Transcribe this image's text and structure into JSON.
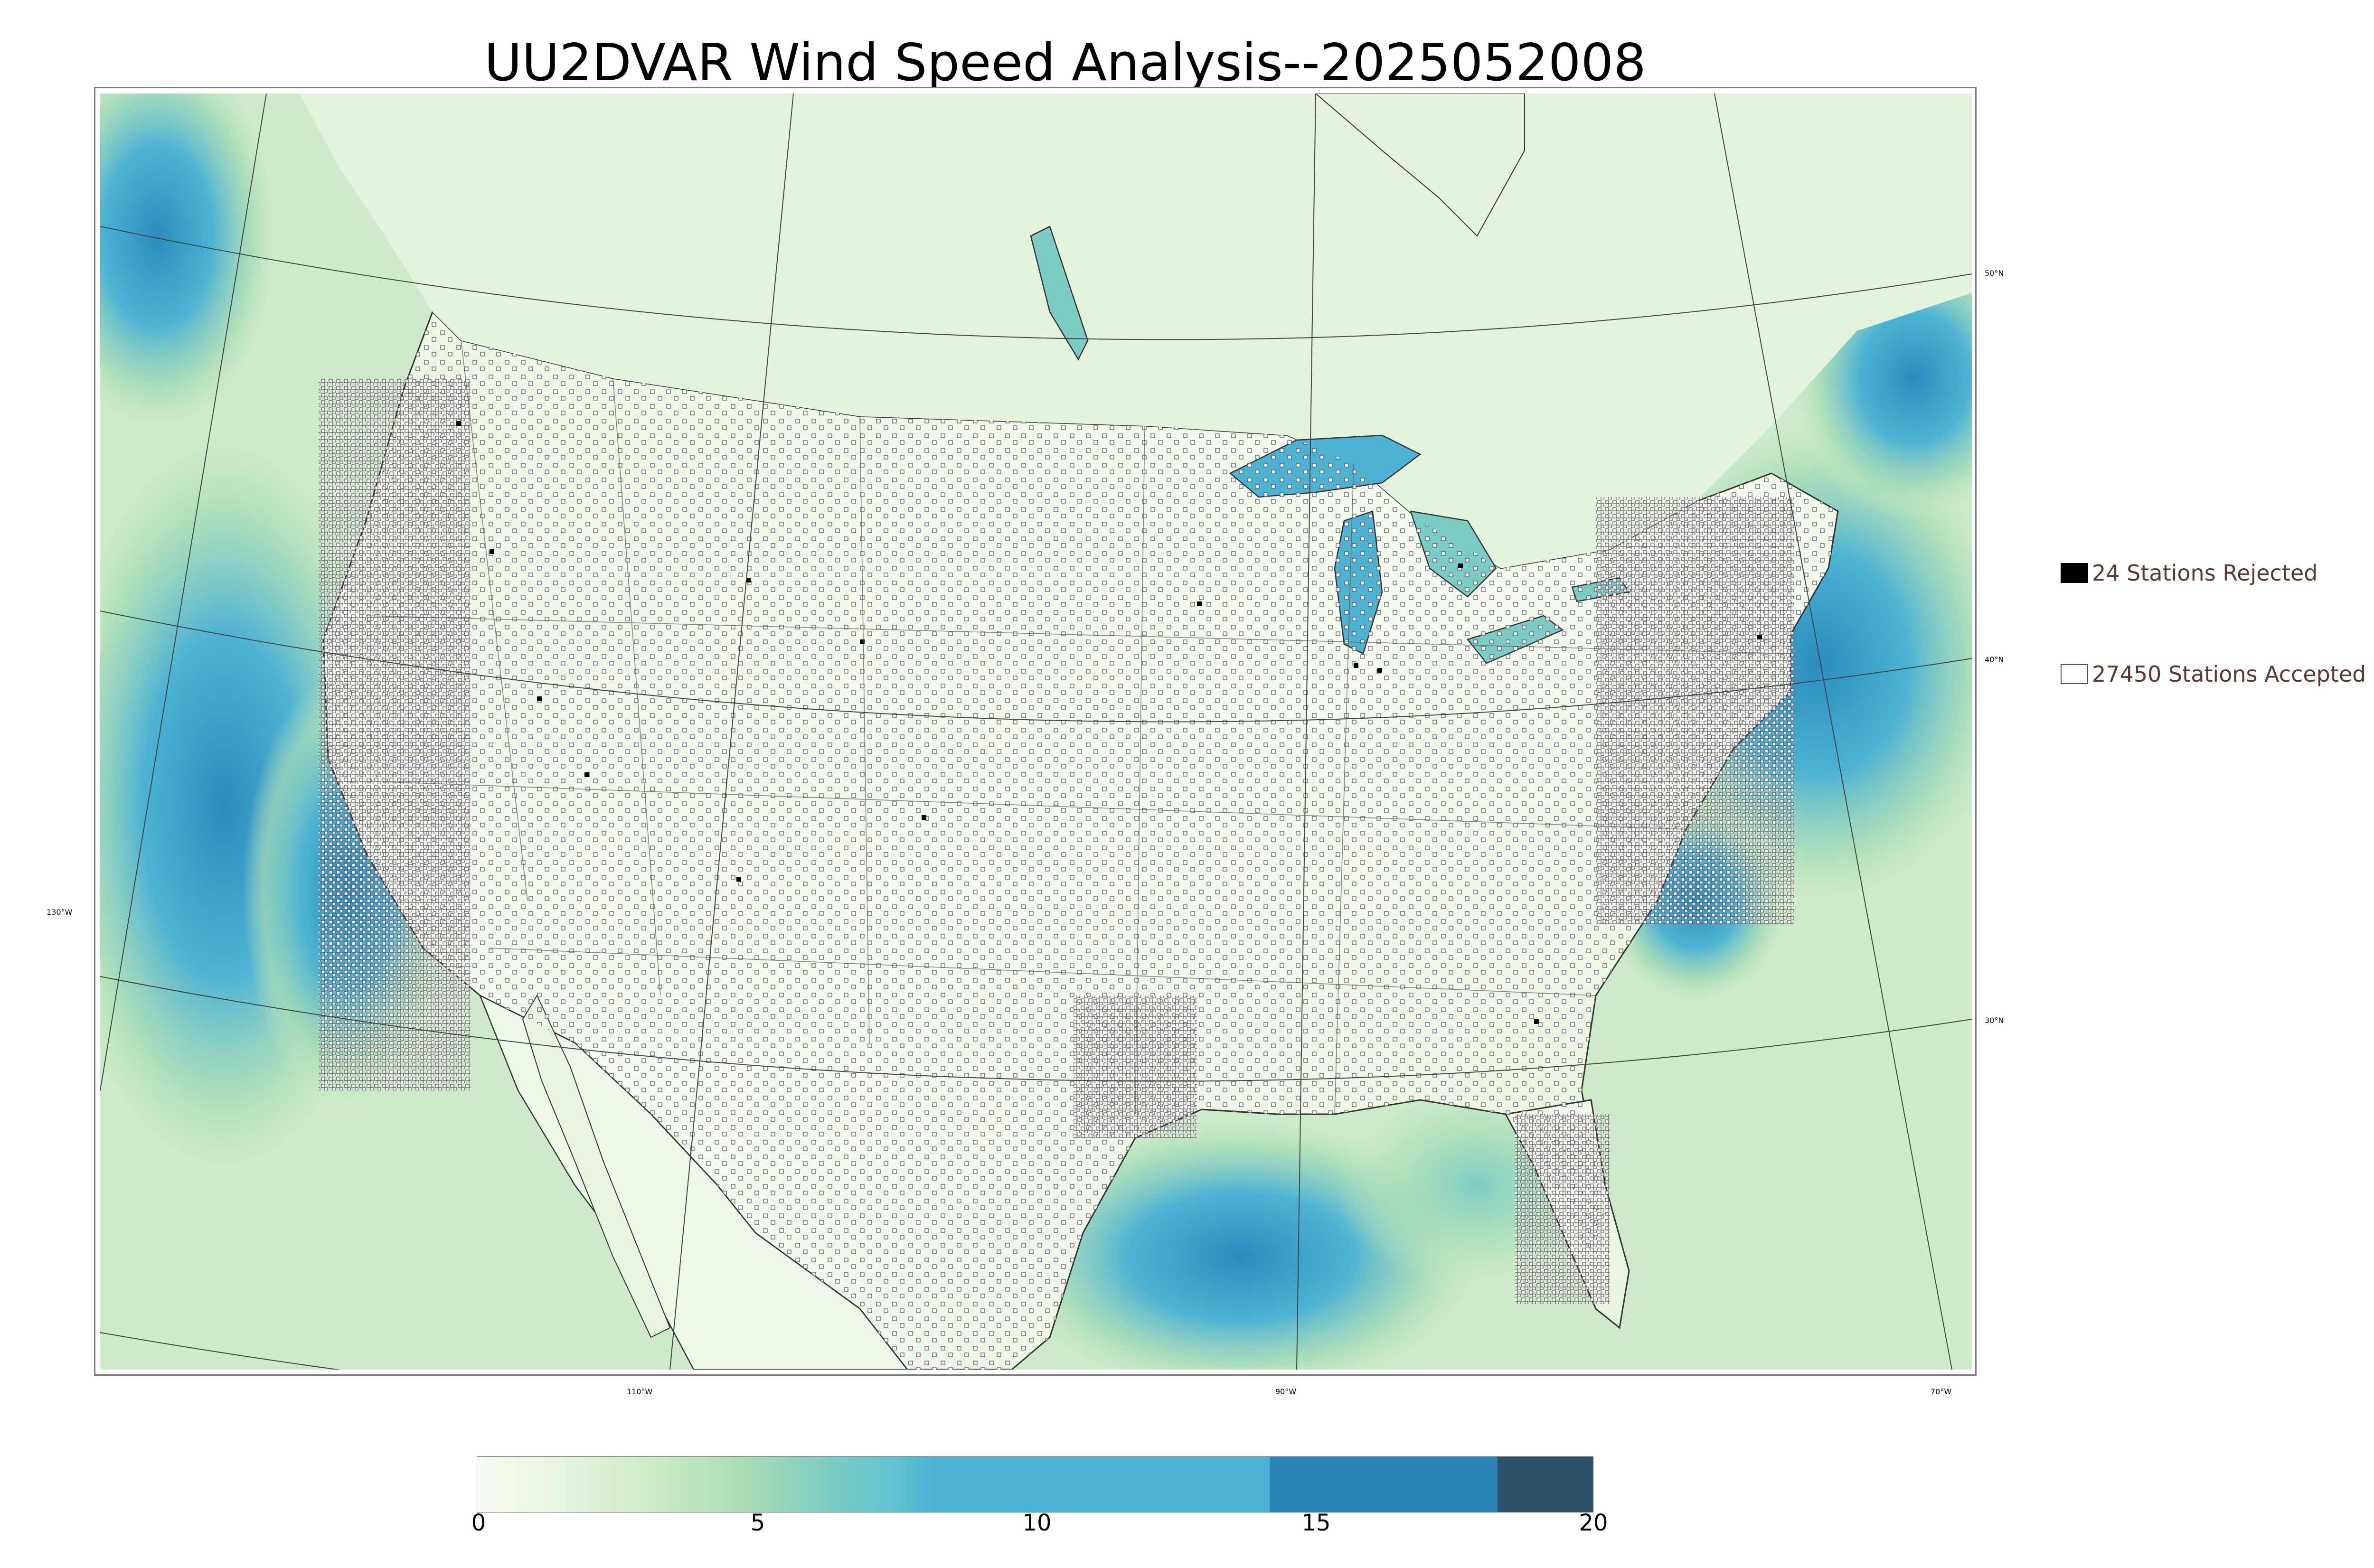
{
  "title": "UU2DVAR Wind Speed Analysis--2025052008",
  "map": {
    "lon_labels": [
      "130°W",
      "110°W",
      "90°W",
      "70°W"
    ],
    "lat_labels": [
      "50°N",
      "40°N",
      "30°N"
    ]
  },
  "legend": {
    "rejected": {
      "label": "24 Stations Rejected",
      "count": 24,
      "color": "#000000"
    },
    "accepted": {
      "label": "27450 Stations Accepted",
      "count": 27450,
      "color": "#ffffff"
    }
  },
  "colorbar": {
    "ticks": [
      "0",
      "5",
      "10",
      "15",
      "20"
    ],
    "range": [
      0,
      20
    ],
    "colormap": [
      "#f7fcf0",
      "#e0f3db",
      "#ccebc5",
      "#a8ddb5",
      "#7bccc4",
      "#4eb3d3",
      "#2b8cbe",
      "#08589e",
      "#2c4f6a"
    ]
  },
  "colors": {
    "land_base": "#e8f5e0",
    "ocean_mid": "#7bccc4",
    "ocean_high": "#4eb3d3",
    "wind_peak": "#2b8cbe",
    "station_rejected": "#000000",
    "station_accepted": "#ffffff"
  }
}
